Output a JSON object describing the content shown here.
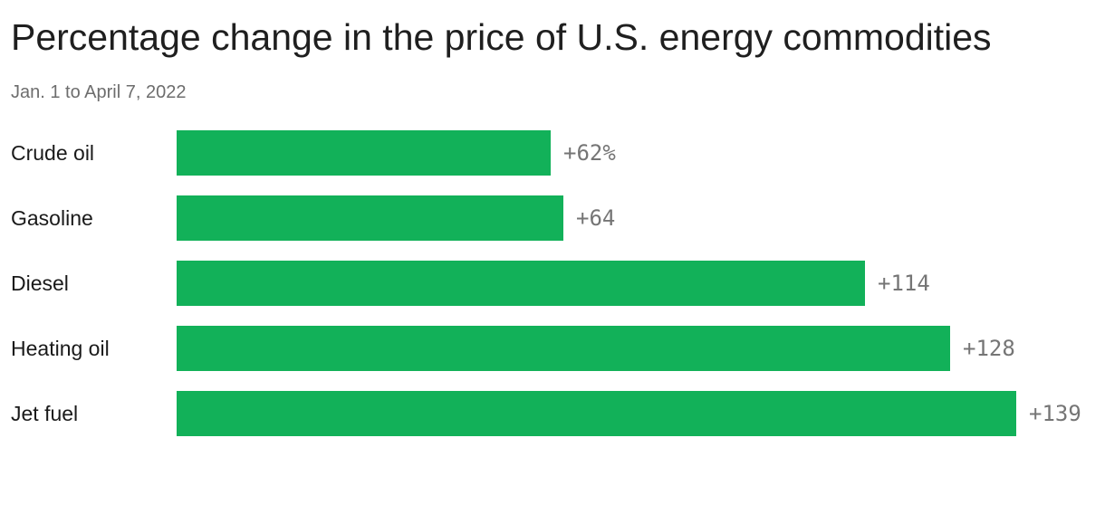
{
  "header": {
    "title": "Percentage change in the price of U.S. energy commodities",
    "subtitle": "Jan. 1 to April 7, 2022"
  },
  "chart_data": {
    "type": "bar",
    "orientation": "horizontal",
    "title": "Percentage change in the price of U.S. energy commodities",
    "subtitle": "Jan. 1 to April 7, 2022",
    "categories": [
      "Crude oil",
      "Gasoline",
      "Diesel",
      "Heating oil",
      "Jet fuel"
    ],
    "values": [
      62,
      64,
      114,
      128,
      139
    ],
    "value_labels": [
      "+62%",
      "+64",
      "+114",
      "+128",
      "+139"
    ],
    "xlim": [
      0,
      139
    ],
    "bar_color": "#12b159",
    "value_label_color": "#757575",
    "grid": false,
    "legend": false
  }
}
